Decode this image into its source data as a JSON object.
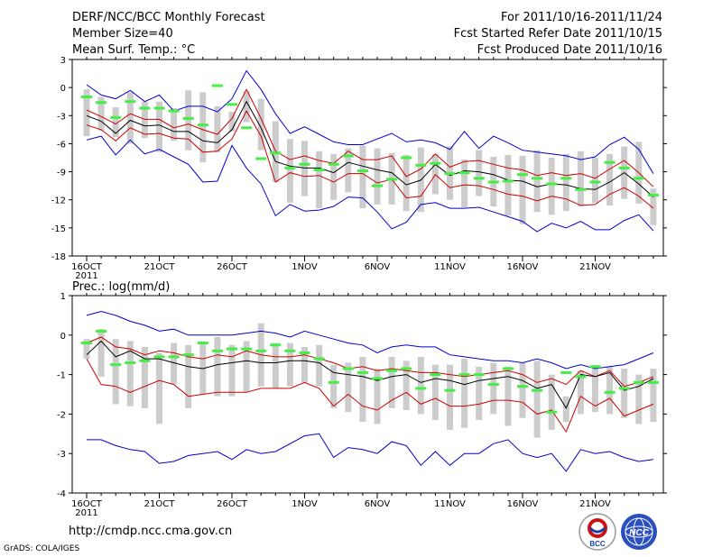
{
  "header": {
    "title": "DERF/NCC/BCC Monthly Forecast",
    "member_size": "Member Size=40",
    "variable1": "Mean Surf. Temp.: °C",
    "period": "For 2011/10/16-2011/11/24",
    "started": "Fcst Started Refer Date 2011/10/15",
    "produced": "Fcst Produced Date 2011/10/16"
  },
  "footer": {
    "url": "http://cmdp.ncc.cma.gov.cn",
    "grads": "GrADS: COLA/IGES",
    "logo1_label": "BCC",
    "logo2_label": "NCC"
  },
  "colors": {
    "envelope": "#0000cc",
    "spread": "#cc0000",
    "mean": "#000000",
    "box": "#cccccc",
    "obs": "#44ee44"
  },
  "chart_data": [
    {
      "type": "line",
      "title": "Mean Surf. Temp.: °C",
      "x": [
        "16",
        "17",
        "18",
        "19",
        "20",
        "21",
        "22",
        "23",
        "24",
        "25",
        "26",
        "27",
        "28",
        "29",
        "30",
        "31",
        "1",
        "2",
        "3",
        "4",
        "5",
        "6",
        "7",
        "8",
        "9",
        "10",
        "11",
        "12",
        "13",
        "14",
        "15",
        "16",
        "17",
        "18",
        "19",
        "20",
        "21",
        "22",
        "23",
        "24"
      ],
      "xticks": [
        "16OCT",
        "21OCT",
        "26OCT",
        "1NOV",
        "6NOV",
        "11NOV",
        "16NOV",
        "21NOV"
      ],
      "xtick_year": "2011",
      "ylim": [
        -18,
        3
      ],
      "yticks": [
        "3",
        "0",
        "-3",
        "-6",
        "-9",
        "-12",
        "-15",
        "-18"
      ],
      "series": [
        {
          "name": "max",
          "values": [
            0.3,
            -0.8,
            -1.2,
            -0.3,
            -1.5,
            -0.8,
            -2.5,
            -2.0,
            -2.0,
            -2.6,
            -1.2,
            1.8,
            -0.2,
            -2.8,
            -4.9,
            -4.2,
            -5.0,
            -5.8,
            -6.1,
            -6.1,
            -5.5,
            -4.9,
            -5.8,
            -5.6,
            -5.9,
            -6.6,
            -4.7,
            -6.5,
            -5.2,
            -5.9,
            -6.7,
            -6.9,
            -7.1,
            -7.3,
            -7.7,
            -7.4,
            -6.1,
            -5.3,
            -6.6,
            -9.2
          ]
        },
        {
          "name": "upper",
          "values": [
            -2.4,
            -3.1,
            -3.9,
            -2.8,
            -3.4,
            -3.4,
            -4.3,
            -3.9,
            -4.5,
            -5.0,
            -3.3,
            -0.2,
            -3.3,
            -6.8,
            -7.7,
            -7.3,
            -7.8,
            -8.1,
            -6.8,
            -7.7,
            -7.7,
            -7.3,
            -9.5,
            -8.7,
            -7.1,
            -8.5,
            -7.9,
            -7.8,
            -8.2,
            -8.6,
            -8.8,
            -9.4,
            -9.1,
            -9.4,
            -9.2,
            -9.7,
            -8.7,
            -7.8,
            -9.1,
            -10.6
          ]
        },
        {
          "name": "mean",
          "values": [
            -3.0,
            -3.6,
            -4.9,
            -3.5,
            -4.1,
            -4.0,
            -4.7,
            -4.7,
            -5.7,
            -5.9,
            -4.5,
            -1.5,
            -4.3,
            -7.9,
            -8.4,
            -8.6,
            -8.6,
            -9.1,
            -8.0,
            -8.4,
            -8.8,
            -9.1,
            -10.4,
            -9.9,
            -8.2,
            -9.4,
            -8.9,
            -9.0,
            -9.3,
            -9.9,
            -10.0,
            -10.6,
            -10.3,
            -10.4,
            -10.8,
            -10.9,
            -10.1,
            -9.1,
            -10.3,
            -11.7
          ]
        },
        {
          "name": "lower",
          "values": [
            -4.0,
            -4.5,
            -5.7,
            -4.3,
            -5.0,
            -4.9,
            -5.4,
            -5.5,
            -6.9,
            -6.8,
            -5.5,
            -2.5,
            -5.2,
            -10.1,
            -9.1,
            -9.5,
            -9.4,
            -10.1,
            -9.2,
            -9.2,
            -10.2,
            -9.8,
            -11.8,
            -11.6,
            -9.3,
            -10.7,
            -10.4,
            -10.5,
            -10.9,
            -11.4,
            -11.6,
            -12.1,
            -11.6,
            -11.9,
            -12.6,
            -12.5,
            -11.4,
            -10.7,
            -11.6,
            -12.9
          ]
        },
        {
          "name": "min",
          "values": [
            -5.6,
            -5.2,
            -7.2,
            -5.6,
            -7.1,
            -6.6,
            -7.4,
            -8.2,
            -10.1,
            -10.0,
            -6.2,
            -8.6,
            -10.3,
            -13.7,
            -12.5,
            -13.2,
            -13.1,
            -12.7,
            -11.7,
            -11.8,
            -13.3,
            -15.1,
            -14.4,
            -12.5,
            -12.3,
            -12.9,
            -12.9,
            -12.8,
            -13.3,
            -13.8,
            -14.3,
            -15.4,
            -14.5,
            -15.0,
            -14.3,
            -15.2,
            -15.2,
            -14.2,
            -13.6,
            -15.3
          ]
        },
        {
          "name": "box_top",
          "values": [
            -0.2,
            -1.0,
            -2.1,
            -0.5,
            -1.5,
            -1.5,
            -2.2,
            -0.3,
            -0.5,
            -2.0,
            -2.6,
            -0.4,
            -1.2,
            -3.6,
            -5.5,
            -5.7,
            -6.8,
            -7.1,
            -6.5,
            -6.2,
            -6.5,
            -7.0,
            -7.2,
            -6.4,
            -7.1,
            -6.3,
            -7.7,
            -6.7,
            -7.4,
            -7.2,
            -7.3,
            -6.7,
            -7.5,
            -7.1,
            -6.8,
            -7.5,
            -7.1,
            -6.3,
            -5.8,
            -10.8
          ]
        },
        {
          "name": "box_bottom",
          "values": [
            -5.2,
            -4.6,
            -5.3,
            -6.0,
            -5.4,
            -6.9,
            -5.7,
            -6.7,
            -8.0,
            -6.9,
            -4.7,
            -3.7,
            -6.7,
            -10.1,
            -12.3,
            -11.6,
            -12.9,
            -12.0,
            -11.2,
            -12.9,
            -12.5,
            -12.5,
            -13.2,
            -13.3,
            -11.4,
            -12.0,
            -12.8,
            -11.6,
            -12.7,
            -13.7,
            -14.6,
            -13.3,
            -13.6,
            -13.2,
            -12.7,
            -12.3,
            -12.6,
            -11.9,
            -12.4,
            -14.7
          ]
        },
        {
          "name": "observed",
          "values": [
            -1.0,
            -1.6,
            -3.2,
            -1.5,
            -2.2,
            -2.2,
            -2.5,
            -3.3,
            -4.0,
            0.2,
            -1.8,
            -4.3,
            -7.6,
            -7.0,
            -8.6,
            -8.2,
            -8.8,
            -8.2,
            -7.3,
            -8.9,
            -10.5,
            -9.8,
            -7.5,
            -8.3,
            -8.1,
            -9.2,
            -9.1,
            -9.7,
            -10.1,
            -10.0,
            -9.3,
            -9.7,
            -10.3,
            -9.7,
            -10.9,
            -10.1,
            -8.0,
            -8.6,
            -9.7,
            -11.5
          ]
        }
      ]
    },
    {
      "type": "line",
      "title": "Prec.: log(mm/d)",
      "x": [
        "16",
        "17",
        "18",
        "19",
        "20",
        "21",
        "22",
        "23",
        "24",
        "25",
        "26",
        "27",
        "28",
        "29",
        "30",
        "31",
        "1",
        "2",
        "3",
        "4",
        "5",
        "6",
        "7",
        "8",
        "9",
        "10",
        "11",
        "12",
        "13",
        "14",
        "15",
        "16",
        "17",
        "18",
        "19",
        "20",
        "21",
        "22",
        "23",
        "24"
      ],
      "xticks": [
        "16OCT",
        "21OCT",
        "26OCT",
        "1NOV",
        "6NOV",
        "11NOV",
        "16NOV",
        "21NOV"
      ],
      "xtick_year": "2011",
      "ylim": [
        -4,
        1
      ],
      "yticks": [
        "1",
        "0",
        "-1",
        "-2",
        "-3",
        "-4"
      ],
      "series": [
        {
          "name": "max",
          "values": [
            0.5,
            0.6,
            0.5,
            0.35,
            0.25,
            0.1,
            0.15,
            0.0,
            0.0,
            0.0,
            0.0,
            0.05,
            0.1,
            0.05,
            -0.05,
            0.1,
            0.0,
            -0.1,
            -0.2,
            -0.25,
            -0.45,
            -0.3,
            -0.25,
            -0.3,
            -0.3,
            -0.5,
            -0.55,
            -0.6,
            -0.65,
            -0.65,
            -0.7,
            -0.6,
            -0.7,
            -0.85,
            -0.75,
            -0.85,
            -0.8,
            -0.75,
            -0.6,
            -0.45
          ]
        },
        {
          "name": "upper",
          "values": [
            -0.2,
            -0.05,
            -0.3,
            -0.35,
            -0.5,
            -0.4,
            -0.45,
            -0.55,
            -0.6,
            -0.5,
            -0.55,
            -0.4,
            -0.5,
            -0.55,
            -0.55,
            -0.5,
            -0.6,
            -0.7,
            -0.85,
            -0.8,
            -0.9,
            -0.85,
            -0.9,
            -0.95,
            -0.95,
            -1.0,
            -1.05,
            -1.0,
            -0.95,
            -0.9,
            -1.0,
            -1.2,
            -1.1,
            -1.25,
            -0.9,
            -1.05,
            -0.9,
            -1.3,
            -1.2,
            -1.05
          ]
        },
        {
          "name": "mean",
          "values": [
            -0.5,
            -0.15,
            -0.55,
            -0.4,
            -0.6,
            -0.6,
            -0.7,
            -0.8,
            -0.85,
            -0.75,
            -0.7,
            -0.65,
            -0.7,
            -0.7,
            -0.65,
            -0.65,
            -0.7,
            -0.95,
            -1.0,
            -1.05,
            -1.15,
            -1.05,
            -1.0,
            -1.2,
            -1.1,
            -1.15,
            -1.25,
            -1.15,
            -1.1,
            -1.05,
            -1.15,
            -1.35,
            -1.25,
            -1.85,
            -1.0,
            -1.05,
            -0.95,
            -1.4,
            -1.3,
            -1.1
          ]
        },
        {
          "name": "lower",
          "values": [
            -0.6,
            -1.25,
            -1.3,
            -1.45,
            -1.3,
            -1.15,
            -1.25,
            -1.55,
            -1.5,
            -1.45,
            -1.45,
            -1.45,
            -1.35,
            -1.35,
            -1.35,
            -1.2,
            -1.35,
            -1.8,
            -1.5,
            -1.8,
            -1.9,
            -1.65,
            -1.45,
            -1.75,
            -1.6,
            -1.8,
            -1.8,
            -1.75,
            -1.65,
            -1.65,
            -1.7,
            -2.0,
            -1.9,
            -2.45,
            -1.55,
            -1.8,
            -1.6,
            -2.05,
            -1.9,
            -1.75
          ]
        },
        {
          "name": "min",
          "values": [
            -2.65,
            -2.65,
            -2.8,
            -2.9,
            -2.95,
            -3.25,
            -3.2,
            -3.05,
            -3.0,
            -2.95,
            -3.15,
            -2.9,
            -3.0,
            -2.95,
            -2.75,
            -2.55,
            -2.5,
            -3.1,
            -2.85,
            -2.9,
            -3.0,
            -2.7,
            -2.8,
            -3.3,
            -2.95,
            -3.3,
            -3.0,
            -3.0,
            -2.75,
            -2.65,
            -3.0,
            -3.1,
            -3.0,
            -3.45,
            -2.9,
            -3.0,
            -2.95,
            -3.1,
            -3.2,
            -3.15
          ]
        },
        {
          "name": "box_top",
          "values": [
            -0.1,
            0.15,
            -0.1,
            -0.15,
            -0.3,
            -0.45,
            -0.2,
            -0.25,
            -0.2,
            -0.05,
            -0.25,
            -0.15,
            0.3,
            -0.2,
            -0.2,
            -0.3,
            -0.25,
            -0.75,
            -0.7,
            -0.55,
            -0.85,
            -0.55,
            -0.65,
            -0.55,
            -0.75,
            -0.75,
            -0.6,
            -0.8,
            -0.7,
            -0.8,
            -0.7,
            -0.65,
            -1.0,
            -1.55,
            -0.9,
            -0.75,
            -0.8,
            -0.85,
            -1.0,
            -0.85
          ]
        },
        {
          "name": "box_bottom",
          "values": [
            -0.6,
            -1.05,
            -1.75,
            -1.8,
            -1.85,
            -2.25,
            -1.25,
            -1.85,
            -1.5,
            -1.55,
            -1.55,
            -1.45,
            -1.3,
            -1.35,
            -1.3,
            -1.2,
            -1.3,
            -1.85,
            -1.95,
            -2.2,
            -2.25,
            -1.85,
            -1.9,
            -2.0,
            -2.15,
            -2.4,
            -2.35,
            -2.15,
            -2.0,
            -2.3,
            -2.1,
            -2.6,
            -2.4,
            -2.2,
            -2.0,
            -1.95,
            -2.0,
            -2.1,
            -2.25,
            -2.2
          ]
        },
        {
          "name": "observed",
          "values": [
            -0.2,
            0.1,
            -0.75,
            -0.7,
            -0.65,
            -0.55,
            -0.55,
            -0.5,
            -0.2,
            -0.4,
            -0.35,
            -0.35,
            -0.4,
            -0.25,
            -0.4,
            -0.45,
            -0.6,
            -1.2,
            -0.85,
            -0.95,
            -1.1,
            -0.9,
            -0.85,
            -1.35,
            -1.0,
            -1.4,
            -1.0,
            -1.0,
            -1.25,
            -0.85,
            -1.3,
            -1.4,
            -1.95,
            -0.95,
            -1.05,
            -0.8,
            -1.45,
            -1.35,
            -1.2,
            -1.2
          ]
        }
      ]
    }
  ]
}
